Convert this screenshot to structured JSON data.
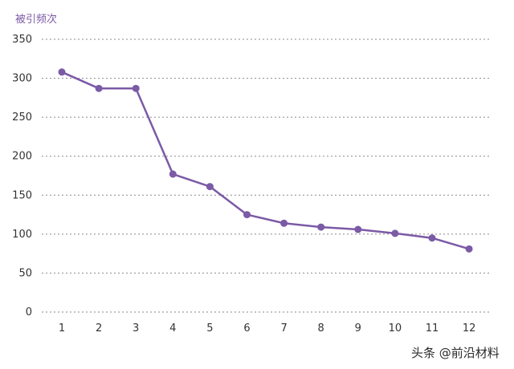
{
  "chart_data": {
    "type": "line",
    "ylabel": "被引频次",
    "x": [
      "1",
      "2",
      "3",
      "4",
      "5",
      "6",
      "7",
      "8",
      "9",
      "10",
      "11",
      "12"
    ],
    "series": [
      {
        "values": [
          308,
          287,
          287,
          177,
          161,
          125,
          114,
          109,
          106,
          101,
          95,
          81
        ]
      }
    ],
    "ylim": [
      0,
      350
    ],
    "yticks": [
      0,
      50,
      100,
      150,
      200,
      250,
      300,
      350
    ],
    "grid": "horizontal-dotted",
    "color": "#7b5aa6"
  },
  "watermark": {
    "text": "头条 @前沿材料"
  }
}
